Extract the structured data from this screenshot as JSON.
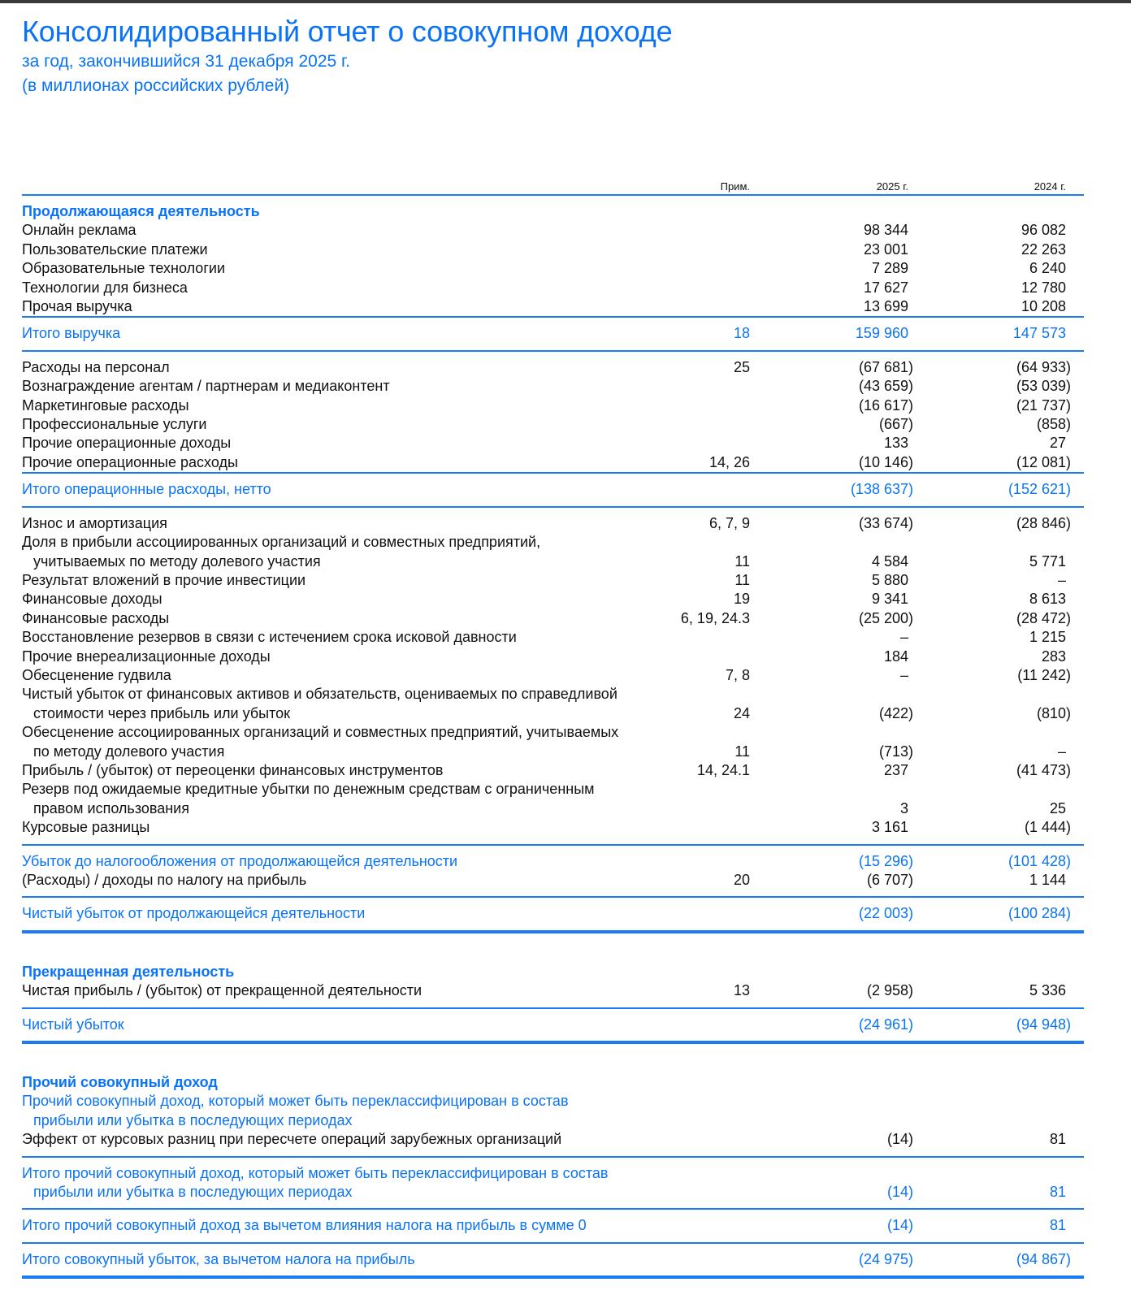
{
  "document": {
    "title": "Консолидированный отчет о совокупном доходе",
    "subtitle": "за год, закончившийся 31 декабря 2025 г.",
    "units": "(в миллионах российских рублей)",
    "accent_color": "#0a73f5"
  },
  "table": {
    "headers": {
      "note": "Прим.",
      "y1": "2025 г.",
      "y2": "2024 г."
    },
    "rows": [
      {
        "kind": "section",
        "label": "Продолжающаяся деятельность"
      },
      {
        "kind": "item",
        "label": "Онлайн реклама",
        "y1": "98 344",
        "y2": "96 082"
      },
      {
        "kind": "item",
        "label": "Пользовательские платежи",
        "y1": "23 001",
        "y2": "22 263"
      },
      {
        "kind": "item",
        "label": "Образовательные технологии",
        "y1": "7 289",
        "y2": "6 240"
      },
      {
        "kind": "item",
        "label": "Технологии для бизнеса",
        "y1": "17 627",
        "y2": "12 780"
      },
      {
        "kind": "item",
        "label": "Прочая выручка",
        "y1": "13 699",
        "y2": "10 208"
      },
      {
        "kind": "rule"
      },
      {
        "kind": "total",
        "label": "Итого выручка",
        "note": "18",
        "y1": "159 960",
        "y2": "147 573"
      },
      {
        "kind": "rule"
      },
      {
        "kind": "gap"
      },
      {
        "kind": "item",
        "label": "Расходы на персонал",
        "note": "25",
        "y1": "(67 681)",
        "y2": "(64 933)"
      },
      {
        "kind": "item",
        "label": "Вознаграждение агентам / партнерам и медиаконтент",
        "y1": "(43 659)",
        "y2": "(53 039)"
      },
      {
        "kind": "item",
        "label": "Маркетинговые расходы",
        "y1": "(16 617)",
        "y2": "(21 737)"
      },
      {
        "kind": "item",
        "label": "Профессиональные услуги",
        "y1": "(667)",
        "y2": "(858)"
      },
      {
        "kind": "item",
        "label": "Прочие операционные доходы",
        "y1": "133",
        "y2": "27"
      },
      {
        "kind": "item",
        "label": "Прочие операционные расходы",
        "note": "14, 26",
        "y1": "(10 146)",
        "y2": "(12 081)"
      },
      {
        "kind": "rule"
      },
      {
        "kind": "total",
        "label": "Итого операционные расходы, нетто",
        "y1": "(138 637)",
        "y2": "(152 621)"
      },
      {
        "kind": "rule"
      },
      {
        "kind": "gap"
      },
      {
        "kind": "item",
        "label": "Износ и амортизация",
        "note": "6, 7, 9",
        "y1": "(33 674)",
        "y2": "(28 846)"
      },
      {
        "kind": "item",
        "label": "Доля в прибыли ассоциированных организаций и совместных предприятий,",
        "cont": "учитываемых по методу долевого участия",
        "note": "11",
        "y1": "4 584",
        "y2": "5 771"
      },
      {
        "kind": "item",
        "label": "Результат вложений в прочие инвестиции",
        "note": "11",
        "y1": "5 880",
        "y2": "–"
      },
      {
        "kind": "item",
        "label": "Финансовые доходы",
        "note": "19",
        "y1": "9 341",
        "y2": "8 613"
      },
      {
        "kind": "item",
        "label": "Финансовые расходы",
        "note": "6, 19, 24.3",
        "y1": "(25 200)",
        "y2": "(28 472)"
      },
      {
        "kind": "item",
        "label": "Восстановление резервов в связи с истечением срока исковой давности",
        "y1": "–",
        "y2": "1 215"
      },
      {
        "kind": "item",
        "label": "Прочие внереализационные доходы",
        "y1": "184",
        "y2": "283"
      },
      {
        "kind": "item",
        "label": "Обесценение гудвила",
        "note": "7, 8",
        "y1": "–",
        "y2": "(11 242)"
      },
      {
        "kind": "item",
        "label": "Чистый убыток от финансовых активов и обязательств, оцениваемых по справедливой",
        "cont": "стоимости через прибыль или убыток",
        "note": "24",
        "y1": "(422)",
        "y2": "(810)"
      },
      {
        "kind": "item",
        "label": "Обесценение ассоциированных организаций и совместных предприятий, учитываемых",
        "cont": "по методу долевого участия",
        "note": "11",
        "y1": "(713)",
        "y2": "–"
      },
      {
        "kind": "item",
        "label": "Прибыль / (убыток) от переоценки финансовых инструментов",
        "note": "14, 24.1",
        "y1": "237",
        "y2": "(41 473)"
      },
      {
        "kind": "item",
        "label": "Резерв под ожидаемые кредитные убытки по денежным средствам с ограниченным",
        "cont": "правом использования",
        "y1": "3",
        "y2": "25"
      },
      {
        "kind": "item",
        "label": "Курсовые разницы",
        "y1": "3 161",
        "y2": "(1 444)"
      },
      {
        "kind": "gap"
      },
      {
        "kind": "rule"
      },
      {
        "kind": "gap"
      },
      {
        "kind": "item-blue",
        "label": "Убыток до налогообложения от продолжающейся деятельности",
        "y1": "(15 296)",
        "y2": "(101 428)"
      },
      {
        "kind": "item",
        "label": "(Расходы) / доходы по налогу на прибыль",
        "note": "20",
        "y1": "(6 707)",
        "y2": "1 144"
      },
      {
        "kind": "gap"
      },
      {
        "kind": "rule"
      },
      {
        "kind": "total",
        "label": "Чистый убыток от продолжающейся деятельности",
        "y1": "(22 003)",
        "y2": "(100 284)"
      },
      {
        "kind": "rule-thick"
      },
      {
        "kind": "section",
        "label": "Прекращенная деятельность"
      },
      {
        "kind": "item",
        "label": "Чистая прибыль / (убыток) от прекращенной деятельности",
        "note": "13",
        "y1": "(2 958)",
        "y2": "5 336"
      },
      {
        "kind": "gap"
      },
      {
        "kind": "rule"
      },
      {
        "kind": "total",
        "label": "Чистый убыток",
        "y1": "(24 961)",
        "y2": "(94 948)"
      },
      {
        "kind": "rule-thick"
      },
      {
        "kind": "section",
        "label": "Прочий совокупный доход"
      },
      {
        "kind": "item-blue",
        "label": "Прочий совокупный доход, который может быть переклассифицирован в состав",
        "cont": "прибыли или убытка в последующих периодах"
      },
      {
        "kind": "item",
        "label": "Эффект от курсовых разниц при пересчете операций зарубежных организаций",
        "y1": "(14)",
        "y2": "81"
      },
      {
        "kind": "gap"
      },
      {
        "kind": "rule"
      },
      {
        "kind": "total",
        "label": "Итого прочий совокупный доход, который может быть переклассифицирован в состав",
        "cont": "прибыли или убытка в последующих периодах",
        "y1": "(14)",
        "y2": "81"
      },
      {
        "kind": "rule"
      },
      {
        "kind": "total",
        "label": "Итого прочий совокупный доход за вычетом влияния налога на прибыль в сумме 0",
        "y1": "(14)",
        "y2": "81"
      },
      {
        "kind": "rule"
      },
      {
        "kind": "total",
        "label": "Итого совокупный убыток, за вычетом налога на прибыль",
        "y1": "(24 975)",
        "y2": "(94 867)"
      },
      {
        "kind": "rule-thick"
      }
    ]
  }
}
